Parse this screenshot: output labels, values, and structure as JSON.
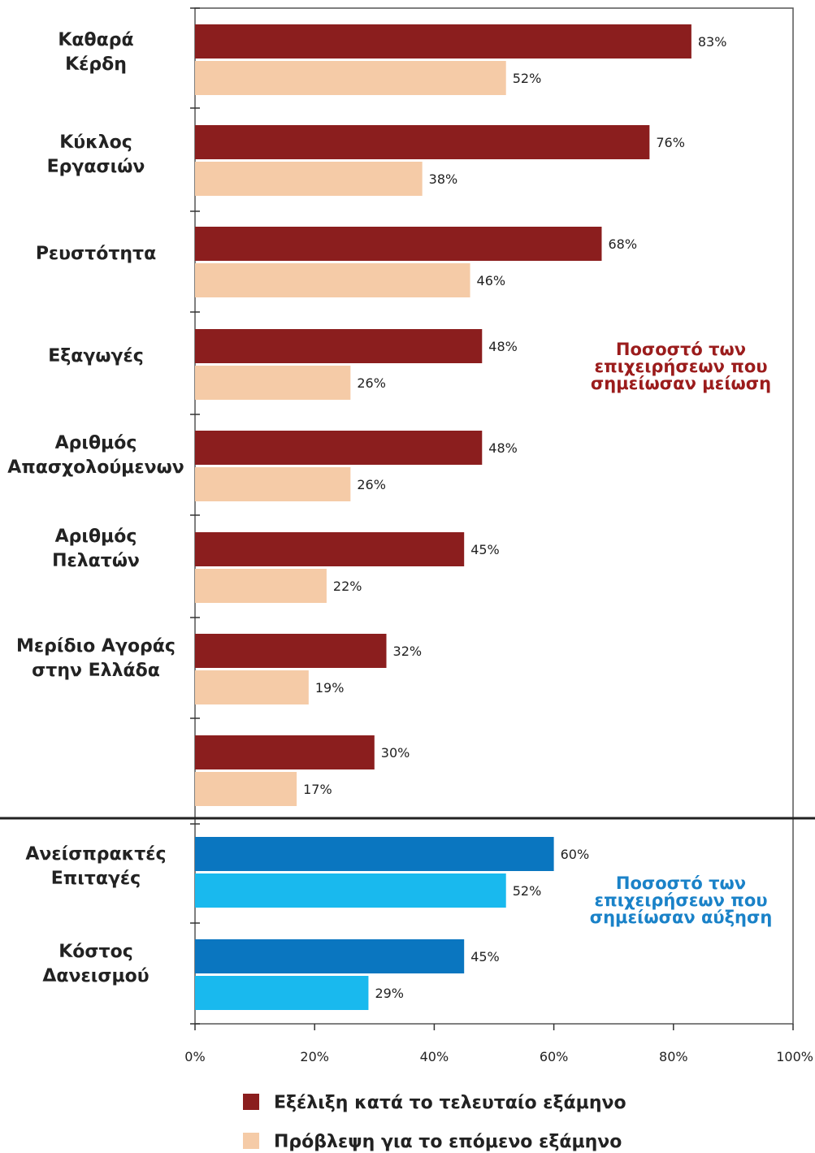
{
  "chart_data": {
    "type": "bar",
    "orientation": "horizontal",
    "categories": [
      [
        "Καθαρά",
        "Κέρδη"
      ],
      [
        "Κύκλος",
        "Εργασιών"
      ],
      [
        "Ρευστότητα"
      ],
      [
        "Εξαγωγές"
      ],
      [
        "Αριθμός",
        "Απασχολούμενων"
      ],
      [
        "Αριθμός",
        "Πελατών"
      ],
      [
        "Μερίδιο Αγοράς",
        "στην Ελλάδα"
      ],
      [],
      [
        "Ανείσπρακτές",
        "Επιταγές"
      ],
      [
        "Κόστος",
        "Δανεισμού"
      ]
    ],
    "series": [
      {
        "name": "Εξέλιξη κατά το τελευταίο εξάμηνο",
        "values": [
          83,
          76,
          68,
          48,
          48,
          45,
          32,
          30,
          60,
          45
        ],
        "labels": [
          "83%",
          "76%",
          "68%",
          "48%",
          "48%",
          "45%",
          "32%",
          "30%",
          "60%",
          "45%"
        ]
      },
      {
        "name": "Πρόβλεψη για το επόμενο εξάμηνο",
        "values": [
          52,
          38,
          46,
          26,
          26,
          22,
          19,
          17,
          52,
          29
        ],
        "labels": [
          "52%",
          "38%",
          "46%",
          "26%",
          "26%",
          "22%",
          "19%",
          "17%",
          "52%",
          "29%"
        ]
      }
    ],
    "groups": [
      {
        "categories": [
          0,
          1,
          2,
          3,
          4,
          5,
          6,
          7
        ],
        "note": [
          "Ποσοστό των",
          "επιχειρήσεων που",
          "σημείωσαν μείωση"
        ]
      },
      {
        "categories": [
          8,
          9
        ],
        "note": [
          "Ποσοστό των",
          "επιχειρήσεων που",
          "σημείωσαν αύξηση"
        ]
      }
    ],
    "xlim": [
      0,
      100
    ],
    "x_ticks": [
      "0%",
      "20%",
      "40%",
      "60%",
      "80%",
      "100%"
    ],
    "legend_position": "bottom",
    "colors": {
      "decrease_series1": "#8B1E1E",
      "decrease_series2": "#F5CBA7",
      "increase_series1": "#0A76C0",
      "increase_series2": "#19B9EE",
      "decrease_note": "#9B1C1C",
      "increase_note": "#1A82C8"
    }
  }
}
